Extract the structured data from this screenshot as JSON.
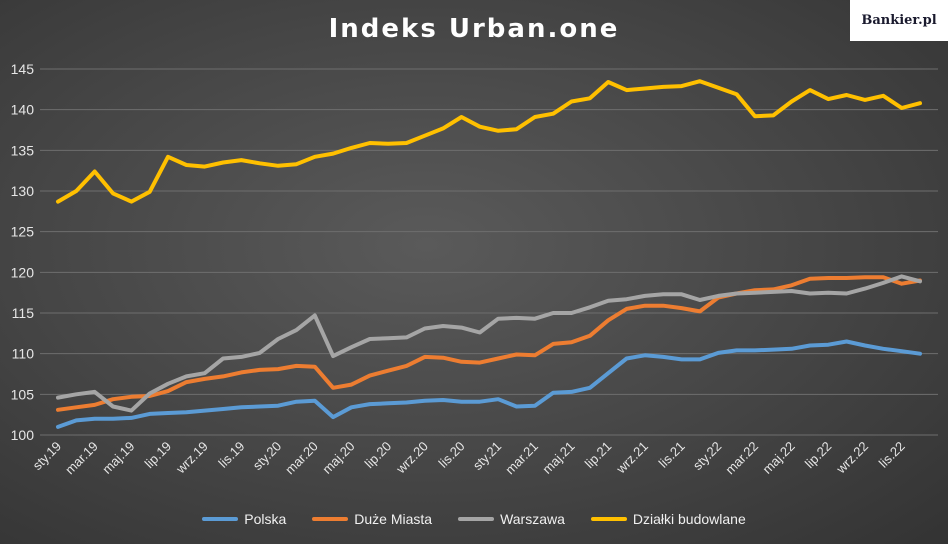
{
  "chart_data": {
    "type": "line",
    "title": "Indeks Urban.one",
    "xlabel": "",
    "ylabel": "",
    "ylim": [
      100,
      145
    ],
    "yticks": [
      100,
      105,
      110,
      115,
      120,
      125,
      130,
      135,
      140,
      145
    ],
    "grid": true,
    "legend": "bottom",
    "x": [
      "sty.19",
      "lut.19",
      "mar.19",
      "kwi.19",
      "maj.19",
      "cze.19",
      "lip.19",
      "sie.19",
      "wrz.19",
      "paź.19",
      "lis.19",
      "gru.19",
      "sty.20",
      "lut.20",
      "mar.20",
      "kwi.20",
      "maj.20",
      "cze.20",
      "lip.20",
      "sie.20",
      "wrz.20",
      "paź.20",
      "lis.20",
      "gru.20",
      "sty.21",
      "lut.21",
      "mar.21",
      "kwi.21",
      "maj.21",
      "cze.21",
      "lip.21",
      "sie.21",
      "wrz.21",
      "paź.21",
      "lis.21",
      "gru.21",
      "sty.22",
      "lut.22",
      "mar.22",
      "kwi.22",
      "maj.22",
      "cze.22",
      "lip.22",
      "sie.22",
      "wrz.22",
      "paź.22",
      "lis.22",
      "gru.22"
    ],
    "x_tick_labels": [
      "sty.19",
      "mar.19",
      "maj.19",
      "lip.19",
      "wrz.19",
      "lis.19",
      "sty.20",
      "mar.20",
      "maj.20",
      "lip.20",
      "wrz.20",
      "lis.20",
      "sty.21",
      "mar.21",
      "maj.21",
      "lip.21",
      "wrz.21",
      "lis.21",
      "sty.22",
      "mar.22",
      "maj.22",
      "lip.22",
      "wrz.22",
      "lis.22"
    ],
    "series": [
      {
        "name": "Polska",
        "color": "#5b9bd5",
        "values": [
          101.0,
          101.8,
          102.0,
          102.0,
          102.1,
          102.6,
          102.7,
          102.8,
          103.0,
          103.2,
          103.4,
          103.5,
          103.6,
          104.1,
          104.2,
          102.2,
          103.4,
          103.8,
          103.9,
          104.0,
          104.2,
          104.3,
          104.1,
          104.1,
          104.4,
          103.5,
          103.6,
          105.2,
          105.3,
          105.8,
          107.6,
          109.4,
          109.8,
          109.6,
          109.3,
          109.3,
          110.1,
          110.4,
          110.4,
          110.5,
          110.6,
          111.0,
          111.1,
          111.5,
          111.0,
          110.6,
          110.3,
          110.0
        ]
      },
      {
        "name": "Duże Miasta",
        "color": "#ed7d31",
        "values": [
          103.1,
          103.4,
          103.7,
          104.4,
          104.7,
          104.8,
          105.4,
          106.5,
          106.9,
          107.2,
          107.7,
          108.0,
          108.1,
          108.5,
          108.4,
          105.8,
          106.2,
          107.3,
          107.9,
          108.5,
          109.6,
          109.5,
          109.0,
          108.9,
          109.4,
          109.9,
          109.8,
          111.2,
          111.4,
          112.2,
          114.1,
          115.5,
          115.9,
          115.9,
          115.6,
          115.2,
          116.9,
          117.4,
          117.8,
          117.9,
          118.4,
          119.2,
          119.3,
          119.3,
          119.4,
          119.4,
          118.6,
          119.0
        ]
      },
      {
        "name": "Warszawa",
        "color": "#a5a5a5",
        "values": [
          104.6,
          105.0,
          105.3,
          103.5,
          103.0,
          105.1,
          106.3,
          107.2,
          107.6,
          109.4,
          109.6,
          110.1,
          111.8,
          112.9,
          114.7,
          109.7,
          110.8,
          111.8,
          111.9,
          112.0,
          113.1,
          113.4,
          113.2,
          112.6,
          114.3,
          114.4,
          114.3,
          115.0,
          115.0,
          115.7,
          116.5,
          116.7,
          117.1,
          117.3,
          117.3,
          116.6,
          117.1,
          117.4,
          117.5,
          117.6,
          117.7,
          117.4,
          117.5,
          117.4,
          118.0,
          118.7,
          119.5,
          118.9
        ]
      },
      {
        "name": "Działki budowlane",
        "color": "#ffc000",
        "values": [
          128.7,
          130.0,
          132.4,
          129.7,
          128.7,
          129.9,
          134.2,
          133.2,
          133.0,
          133.5,
          133.8,
          133.4,
          133.1,
          133.3,
          134.2,
          134.6,
          135.3,
          135.9,
          135.8,
          135.9,
          136.8,
          137.7,
          139.1,
          137.9,
          137.4,
          137.6,
          139.1,
          139.5,
          141.0,
          141.4,
          143.4,
          142.4,
          142.6,
          142.8,
          142.9,
          143.5,
          142.7,
          141.9,
          139.2,
          139.3,
          141.0,
          142.4,
          141.3,
          141.8,
          141.2,
          141.7,
          140.2,
          140.8
        ]
      }
    ]
  },
  "branding": {
    "site_label": "Bankier.pl"
  }
}
